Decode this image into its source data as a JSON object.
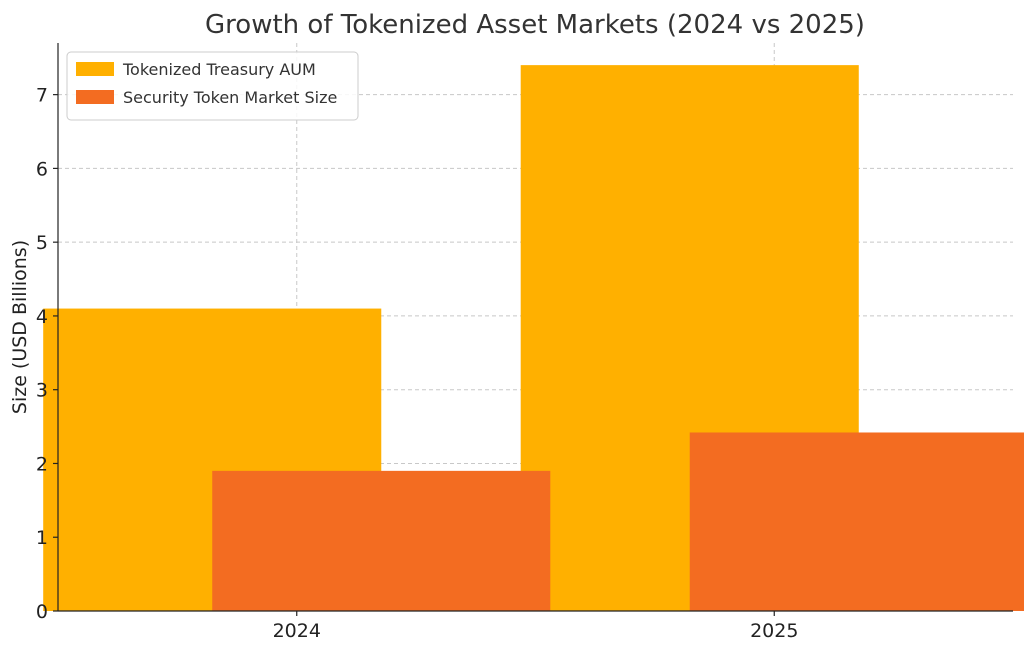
{
  "chart_data": {
    "type": "bar",
    "title": "Growth of Tokenized Asset Markets (2024 vs 2025)",
    "xlabel": "",
    "ylabel": "Size (USD Billions)",
    "categories": [
      "2024",
      "2025"
    ],
    "ylim": [
      0,
      7.7
    ],
    "yticks": [
      0,
      1,
      2,
      3,
      4,
      5,
      6,
      7
    ],
    "grid": true,
    "legend_position": "top-left",
    "series": [
      {
        "name": "Tokenized Treasury AUM",
        "values": [
          4.1,
          7.4
        ],
        "color": "#FFB000"
      },
      {
        "name": "Security Token Market Size",
        "values": [
          1.9,
          2.42
        ],
        "color": "#F36C21"
      }
    ]
  }
}
